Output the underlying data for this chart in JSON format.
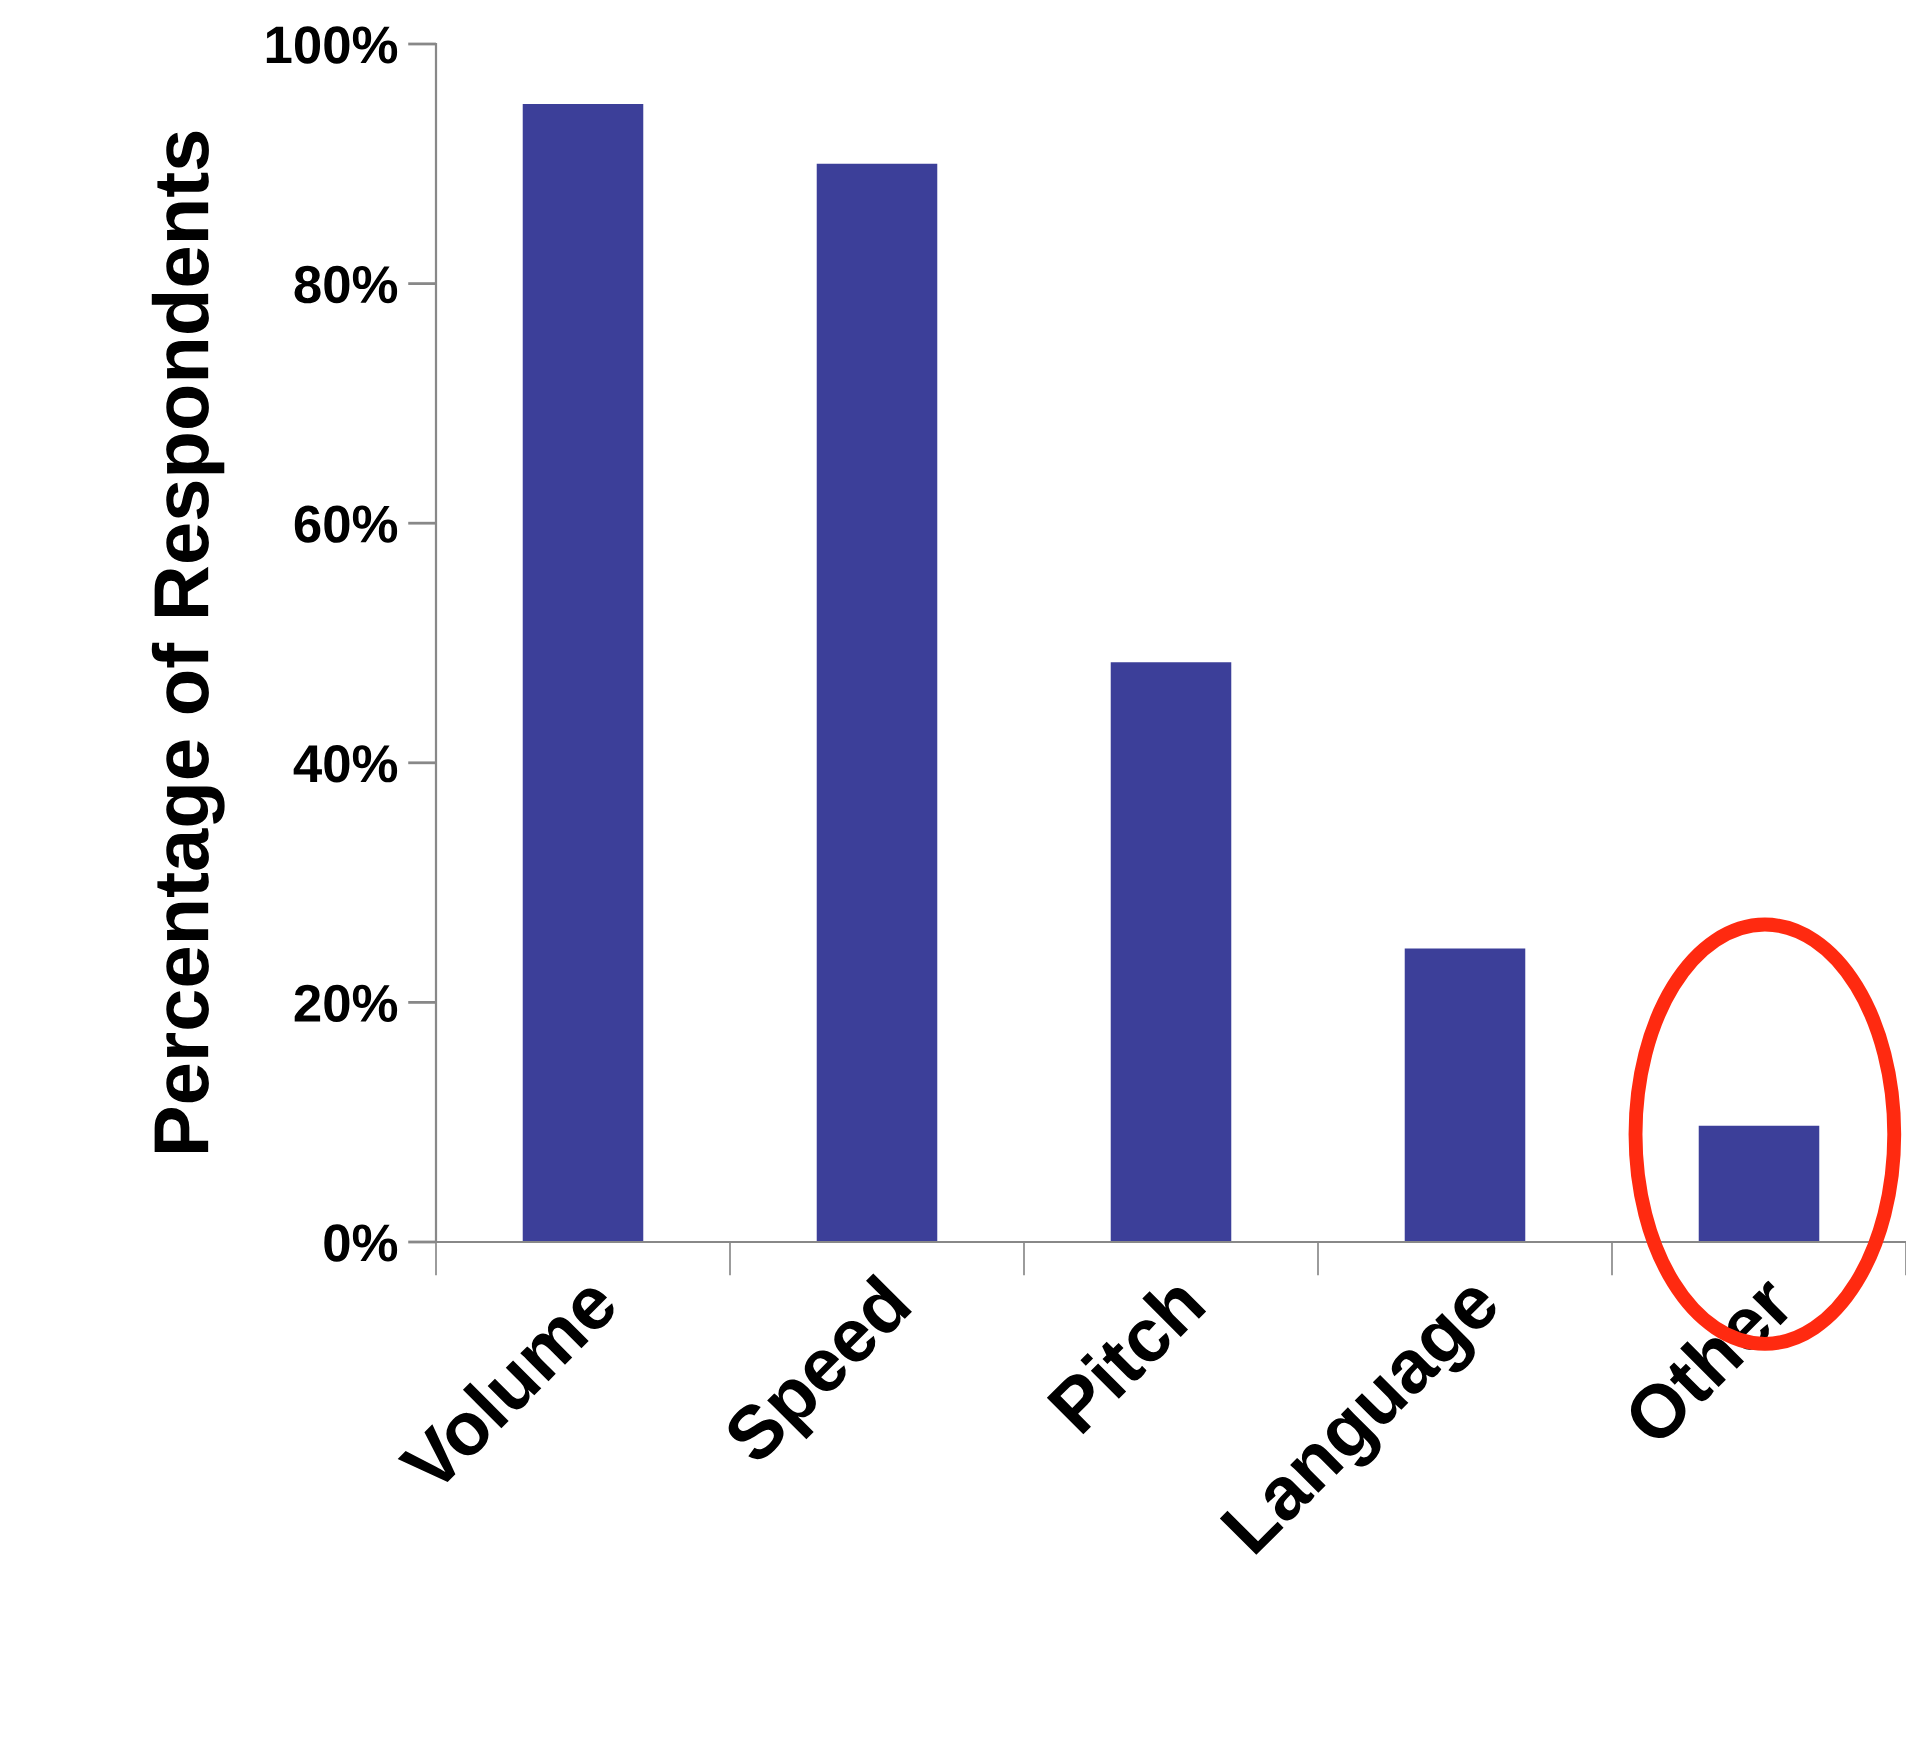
{
  "chart_data": {
    "type": "bar",
    "ylabel": "Percentage of Respondents",
    "categories": [
      "Volume",
      "Speed",
      "Pitch",
      "Language",
      "Other"
    ],
    "values": [
      95,
      90,
      48.4,
      24.5,
      9.7
    ],
    "color": "#3c3f99",
    "ylim": [
      0,
      100
    ],
    "yticks": [
      {
        "value": 0,
        "label": "0%"
      },
      {
        "value": 20,
        "label": "20%"
      },
      {
        "value": 40,
        "label": "40%"
      },
      {
        "value": 60,
        "label": "60%"
      },
      {
        "value": 80,
        "label": "80%"
      },
      {
        "value": 100,
        "label": "100%"
      }
    ],
    "grid": false,
    "legend": false
  }
}
